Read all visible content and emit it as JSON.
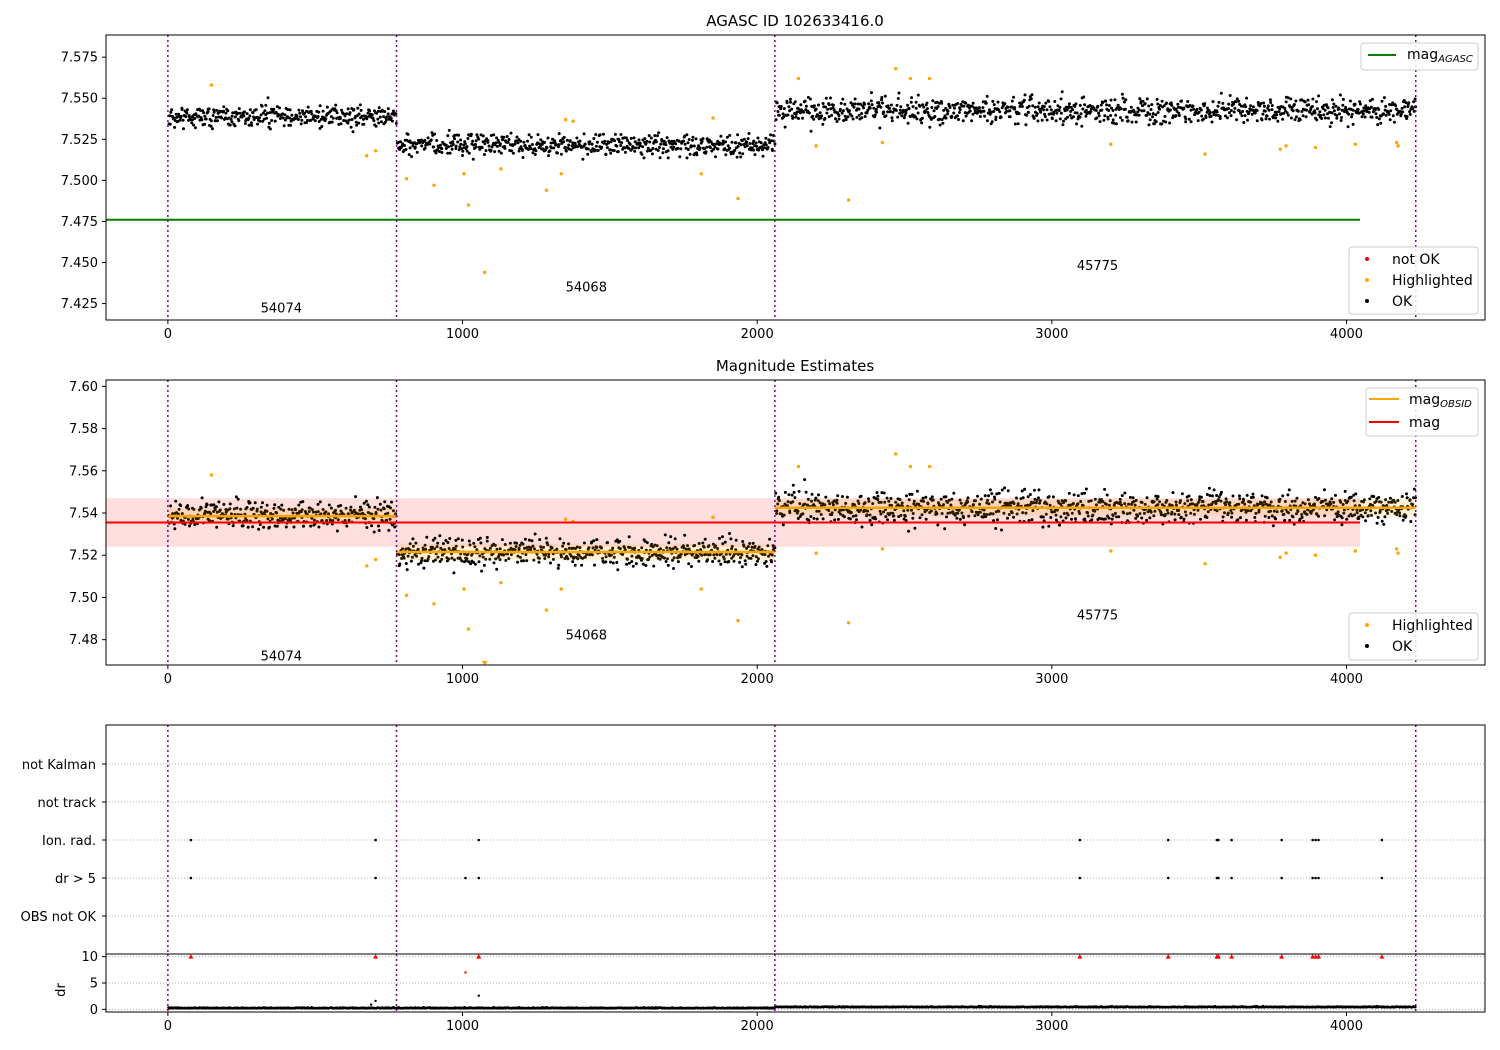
{
  "chart_data": [
    {
      "type": "scatter",
      "title": "AGASC ID 102633416.0",
      "xlim": [
        -210,
        4470
      ],
      "ylim": [
        7.415,
        7.5885
      ],
      "xticks": [
        0,
        1000,
        2000,
        3000,
        4000
      ],
      "yticks": [
        7.425,
        7.45,
        7.475,
        7.5,
        7.525,
        7.55,
        7.575
      ],
      "ytick_labels": [
        "7.425",
        "7.450",
        "7.475",
        "7.500",
        "7.525",
        "7.550",
        "7.575"
      ],
      "obs_boundaries": [
        0,
        776,
        2060,
        4235
      ],
      "obs_labels": [
        {
          "text": "54074",
          "x": 385,
          "y": 7.4225
        },
        {
          "text": "54068",
          "x": 1420,
          "y": 7.4355
        },
        {
          "text": "45775",
          "x": 3155,
          "y": 7.4485
        }
      ],
      "mag_agasc": 7.476,
      "legend_top": [
        {
          "label": "mag",
          "sub": "AGASC",
          "color": "#008000"
        }
      ],
      "legend_bottom": [
        {
          "label": "not OK",
          "color": "#ff0000"
        },
        {
          "label": "Highlighted",
          "color": "#ffa500"
        },
        {
          "label": "OK",
          "color": "#000000"
        }
      ],
      "segments": [
        {
          "x0": 0,
          "x1": 776,
          "mean": 7.539,
          "spread": 0.0055
        },
        {
          "x0": 776,
          "x1": 2060,
          "mean": 7.5215,
          "spread": 0.0055
        },
        {
          "x0": 2060,
          "x1": 4235,
          "mean": 7.5425,
          "spread": 0.0065
        }
      ],
      "highlighted_points": [
        [
          148,
          7.558
        ],
        [
          675,
          7.515
        ],
        [
          705,
          7.518
        ],
        [
          810,
          7.501
        ],
        [
          903,
          7.497
        ],
        [
          1005,
          7.504
        ],
        [
          1020,
          7.485
        ],
        [
          1075,
          7.444
        ],
        [
          1130,
          7.507
        ],
        [
          1285,
          7.494
        ],
        [
          1335,
          7.504
        ],
        [
          1350,
          7.537
        ],
        [
          1375,
          7.536
        ],
        [
          1810,
          7.504
        ],
        [
          1850,
          7.538
        ],
        [
          1935,
          7.489
        ],
        [
          2140,
          7.562
        ],
        [
          2200,
          7.521
        ],
        [
          2310,
          7.488
        ],
        [
          2425,
          7.523
        ],
        [
          2470,
          7.568
        ],
        [
          2520,
          7.562
        ],
        [
          2585,
          7.562
        ],
        [
          3200,
          7.522
        ],
        [
          3520,
          7.516
        ],
        [
          3775,
          7.519
        ],
        [
          3795,
          7.521
        ],
        [
          3895,
          7.52
        ],
        [
          4030,
          7.522
        ],
        [
          4170,
          7.523
        ],
        [
          4175,
          7.521
        ]
      ]
    },
    {
      "type": "scatter",
      "title": "Magnitude Estimates",
      "xlim": [
        -210,
        4470
      ],
      "ylim": [
        7.468,
        7.603
      ],
      "xticks": [
        0,
        1000,
        2000,
        3000,
        4000
      ],
      "yticks": [
        7.48,
        7.5,
        7.52,
        7.54,
        7.56,
        7.58,
        7.6
      ],
      "ytick_labels": [
        "7.48",
        "7.50",
        "7.52",
        "7.54",
        "7.56",
        "7.58",
        "7.60"
      ],
      "obs_boundaries": [
        0,
        776,
        2060,
        4235
      ],
      "obs_labels": [
        {
          "text": "54074",
          "x": 385,
          "y": 7.4725
        },
        {
          "text": "54068",
          "x": 1420,
          "y": 7.4825
        },
        {
          "text": "45775",
          "x": 3155,
          "y": 7.492
        }
      ],
      "mag": 7.5355,
      "mag_band": [
        7.524,
        7.547
      ],
      "mag_obsid": [
        {
          "x0": 0,
          "x1": 776,
          "value": 7.5385
        },
        {
          "x0": 776,
          "x1": 2060,
          "value": 7.5215
        },
        {
          "x0": 2060,
          "x1": 4235,
          "value": 7.5425
        }
      ],
      "legend_top": [
        {
          "label": "mag",
          "sub": "OBSID",
          "color": "#ffa500"
        },
        {
          "label": "mag",
          "sub": "",
          "color": "#ff0000"
        }
      ],
      "legend_bottom": [
        {
          "label": "Highlighted",
          "color": "#ffa500"
        },
        {
          "label": "OK",
          "color": "#000000"
        }
      ],
      "highlighted_points": [
        [
          148,
          7.558
        ],
        [
          675,
          7.515
        ],
        [
          705,
          7.518
        ],
        [
          810,
          7.501
        ],
        [
          903,
          7.497
        ],
        [
          1005,
          7.504
        ],
        [
          1020,
          7.485
        ],
        [
          1130,
          7.507
        ],
        [
          1285,
          7.494
        ],
        [
          1335,
          7.504
        ],
        [
          1350,
          7.537
        ],
        [
          1375,
          7.536
        ],
        [
          1810,
          7.504
        ],
        [
          1850,
          7.538
        ],
        [
          1935,
          7.489
        ],
        [
          2140,
          7.562
        ],
        [
          2200,
          7.521
        ],
        [
          2310,
          7.488
        ],
        [
          2425,
          7.523
        ],
        [
          2470,
          7.568
        ],
        [
          2520,
          7.562
        ],
        [
          2585,
          7.562
        ],
        [
          3200,
          7.522
        ],
        [
          3520,
          7.516
        ],
        [
          3775,
          7.519
        ],
        [
          3795,
          7.521
        ],
        [
          3895,
          7.52
        ],
        [
          4030,
          7.522
        ],
        [
          4170,
          7.523
        ],
        [
          4175,
          7.521
        ]
      ],
      "off_scale_points": [
        [
          1075,
          7.469
        ]
      ]
    },
    {
      "type": "scatter",
      "title": "",
      "xlim": [
        -210,
        4470
      ],
      "categories": [
        "OBS not OK",
        "dr > 5",
        "Ion. rad.",
        "not track",
        "not Kalman"
      ],
      "flags": {
        "dr > 5": [
          78,
          705,
          1010,
          1055,
          3095,
          3395,
          3560,
          3565,
          3610,
          3780,
          3885,
          3895,
          3905,
          4120
        ],
        "Ion. rad.": [
          78,
          705,
          1055,
          3095,
          3395,
          3560,
          3565,
          3610,
          3780,
          3885,
          3895,
          3905,
          4120
        ],
        "not track": [],
        "not Kalman": [],
        "OBS not OK": []
      },
      "obs_boundaries": [
        0,
        776,
        2060,
        4235
      ]
    },
    {
      "type": "scatter",
      "title": "",
      "ylabel": "dr",
      "xlim": [
        -210,
        4470
      ],
      "ylim": [
        -0.5,
        10.5
      ],
      "xticks": [
        0,
        1000,
        2000,
        3000,
        4000
      ],
      "yticks": [
        0,
        5,
        10
      ],
      "obs_boundaries": [
        0,
        776,
        2060,
        4235
      ],
      "segments": [
        {
          "x0": 0,
          "x1": 776,
          "mean": 0.25
        },
        {
          "x0": 776,
          "x1": 2060,
          "mean": 0.25
        },
        {
          "x0": 2060,
          "x1": 4235,
          "mean": 0.45
        }
      ],
      "outliers": [
        [
          690,
          0.9
        ],
        [
          705,
          1.6
        ],
        [
          1010,
          7.0
        ],
        [
          1055,
          2.6
        ]
      ],
      "clipped": [
        78,
        705,
        1055,
        3095,
        3395,
        3560,
        3565,
        3610,
        3780,
        3885,
        3895,
        3905,
        4120
      ]
    }
  ]
}
